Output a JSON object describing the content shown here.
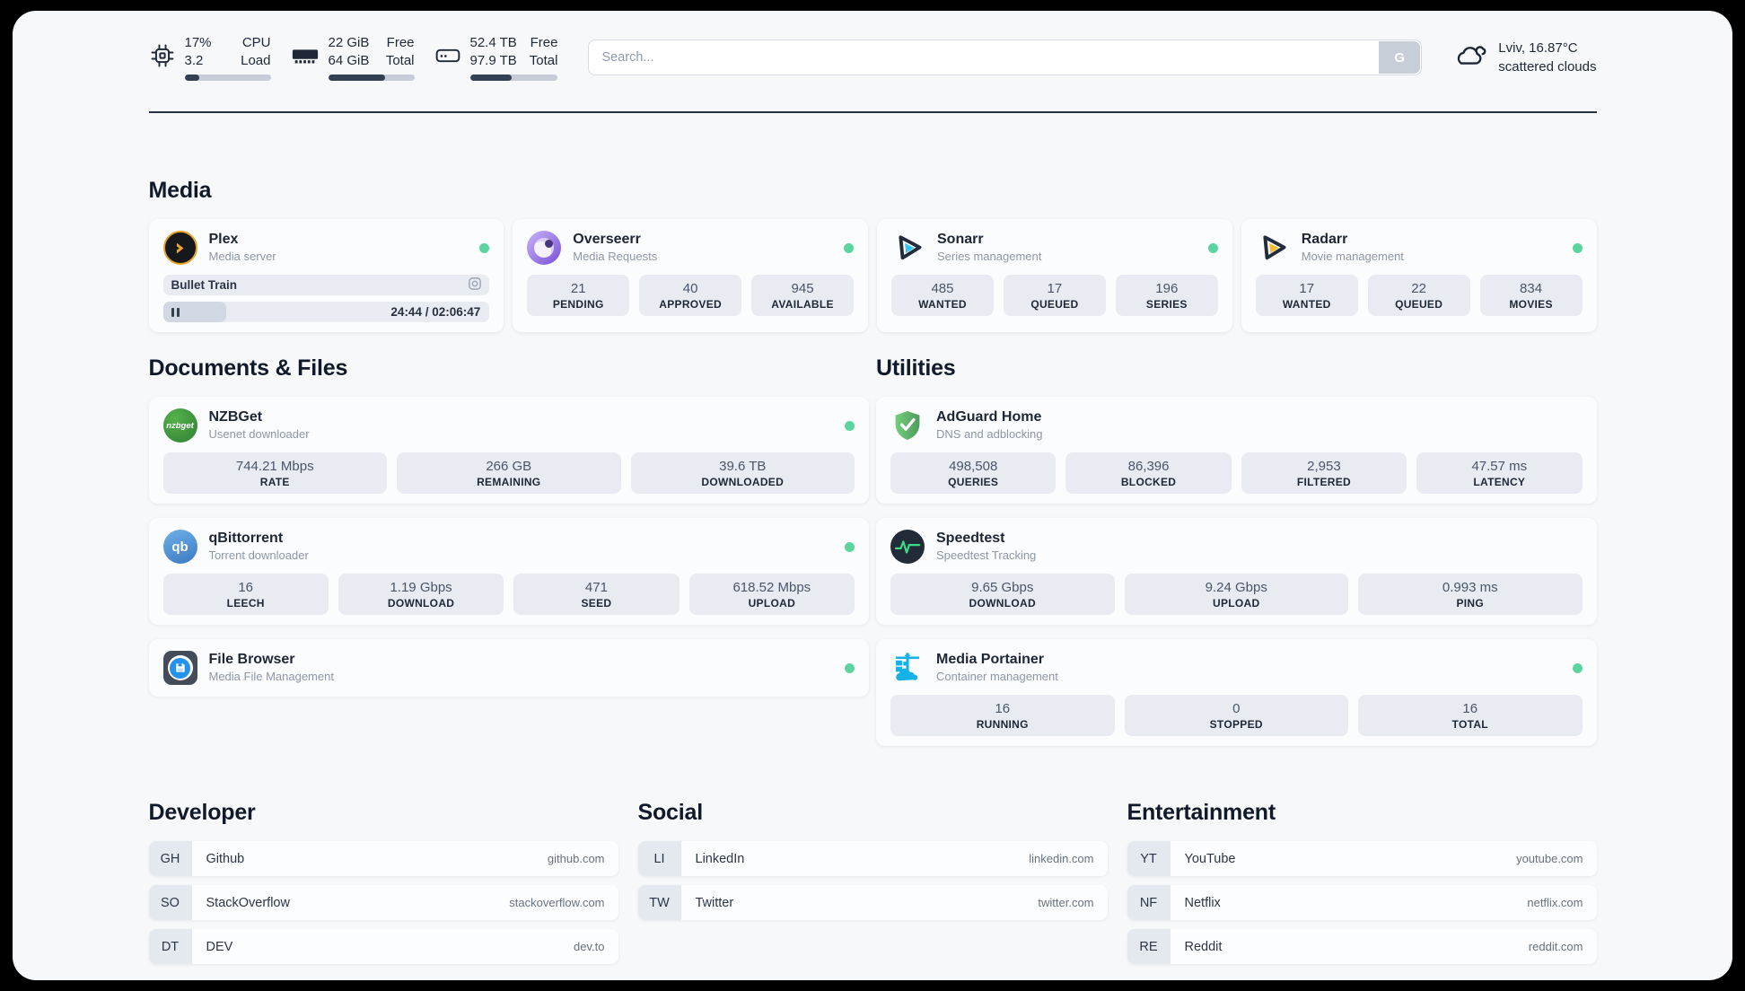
{
  "colors": {
    "status_green": "#5dd49d",
    "bar_fill": "#333f52",
    "panel_background": "#f6f8fa"
  },
  "header": {
    "resources": [
      {
        "icon": "cpu-icon",
        "values": {
          "top": "17%",
          "bottom": "3.2"
        },
        "labels": {
          "top": "CPU",
          "bottom": "Load"
        },
        "percent": 17
      },
      {
        "icon": "ram-icon",
        "values": {
          "top": "22 GiB",
          "bottom": "64 GiB"
        },
        "labels": {
          "top": "Free",
          "bottom": "Total"
        },
        "percent": 66
      },
      {
        "icon": "disk-icon",
        "values": {
          "top": "52.4 TB",
          "bottom": "97.9 TB"
        },
        "labels": {
          "top": "Free",
          "bottom": "Total"
        },
        "percent": 47
      }
    ],
    "search": {
      "placeholder": "Search...",
      "button_label": "G"
    },
    "weather": {
      "icon": "cloud-icon",
      "line1": "Lviv, 16.87°C",
      "line2": "scattered clouds"
    }
  },
  "media": {
    "title": "Media",
    "plex": {
      "icon": "plex-icon",
      "title": "Plex",
      "subtitle": "Media server",
      "status": "online",
      "now_playing": "Bullet Train",
      "time_display": "24:44 / 02:06:47",
      "progress_percent": 19.5
    },
    "cards": [
      {
        "icon": "overseerr-icon",
        "title": "Overseerr",
        "subtitle": "Media Requests",
        "status": "online",
        "stats": [
          {
            "value": "21",
            "label": "PENDING"
          },
          {
            "value": "40",
            "label": "APPROVED"
          },
          {
            "value": "945",
            "label": "AVAILABLE"
          }
        ]
      },
      {
        "icon": "sonarr-icon",
        "title": "Sonarr",
        "subtitle": "Series management",
        "status": "online",
        "stats": [
          {
            "value": "485",
            "label": "WANTED"
          },
          {
            "value": "17",
            "label": "QUEUED"
          },
          {
            "value": "196",
            "label": "SERIES"
          }
        ]
      },
      {
        "icon": "radarr-icon",
        "title": "Radarr",
        "subtitle": "Movie management",
        "status": "online",
        "stats": [
          {
            "value": "17",
            "label": "WANTED"
          },
          {
            "value": "22",
            "label": "QUEUED"
          },
          {
            "value": "834",
            "label": "MOVIES"
          }
        ]
      }
    ]
  },
  "documents": {
    "title": "Documents & Files",
    "cards": [
      {
        "icon": "nzbget-icon",
        "title": "NZBGet",
        "subtitle": "Usenet downloader",
        "status": "online",
        "stats": [
          {
            "value": "744.21 Mbps",
            "label": "RATE"
          },
          {
            "value": "266 GB",
            "label": "REMAINING"
          },
          {
            "value": "39.6 TB",
            "label": "DOWNLOADED"
          }
        ]
      },
      {
        "icon": "qbittorrent-icon",
        "title": "qBittorrent",
        "subtitle": "Torrent downloader",
        "status": "online",
        "stats": [
          {
            "value": "16",
            "label": "LEECH"
          },
          {
            "value": "1.19 Gbps",
            "label": "DOWNLOAD"
          },
          {
            "value": "471",
            "label": "SEED"
          },
          {
            "value": "618.52 Mbps",
            "label": "UPLOAD"
          }
        ]
      },
      {
        "icon": "filebrowser-icon",
        "title": "File Browser",
        "subtitle": "Media File Management",
        "status": "online",
        "stats": []
      }
    ]
  },
  "utilities": {
    "title": "Utilities",
    "cards": [
      {
        "icon": "adguard-icon",
        "title": "AdGuard Home",
        "subtitle": "DNS and adblocking",
        "stats": [
          {
            "value": "498,508",
            "label": "QUERIES"
          },
          {
            "value": "86,396",
            "label": "BLOCKED"
          },
          {
            "value": "2,953",
            "label": "FILTERED"
          },
          {
            "value": "47.57 ms",
            "label": "LATENCY"
          }
        ]
      },
      {
        "icon": "speedtest-icon",
        "title": "Speedtest",
        "subtitle": "Speedtest Tracking",
        "stats": [
          {
            "value": "9.65 Gbps",
            "label": "DOWNLOAD"
          },
          {
            "value": "9.24 Gbps",
            "label": "UPLOAD"
          },
          {
            "value": "0.993 ms",
            "label": "PING"
          }
        ]
      },
      {
        "icon": "portainer-icon",
        "title": "Media Portainer",
        "subtitle": "Container management",
        "status": "online",
        "stats": [
          {
            "value": "16",
            "label": "RUNNING"
          },
          {
            "value": "0",
            "label": "STOPPED"
          },
          {
            "value": "16",
            "label": "TOTAL"
          }
        ]
      }
    ]
  },
  "bookmarks": [
    {
      "title": "Developer",
      "items": [
        {
          "abbr": "GH",
          "name": "Github",
          "domain": "github.com"
        },
        {
          "abbr": "SO",
          "name": "StackOverflow",
          "domain": "stackoverflow.com"
        },
        {
          "abbr": "DT",
          "name": "DEV",
          "domain": "dev.to"
        }
      ]
    },
    {
      "title": "Social",
      "items": [
        {
          "abbr": "LI",
          "name": "LinkedIn",
          "domain": "linkedin.com"
        },
        {
          "abbr": "TW",
          "name": "Twitter",
          "domain": "twitter.com"
        }
      ]
    },
    {
      "title": "Entertainment",
      "items": [
        {
          "abbr": "YT",
          "name": "YouTube",
          "domain": "youtube.com"
        },
        {
          "abbr": "NF",
          "name": "Netflix",
          "domain": "netflix.com"
        },
        {
          "abbr": "RE",
          "name": "Reddit",
          "domain": "reddit.com"
        }
      ]
    }
  ]
}
